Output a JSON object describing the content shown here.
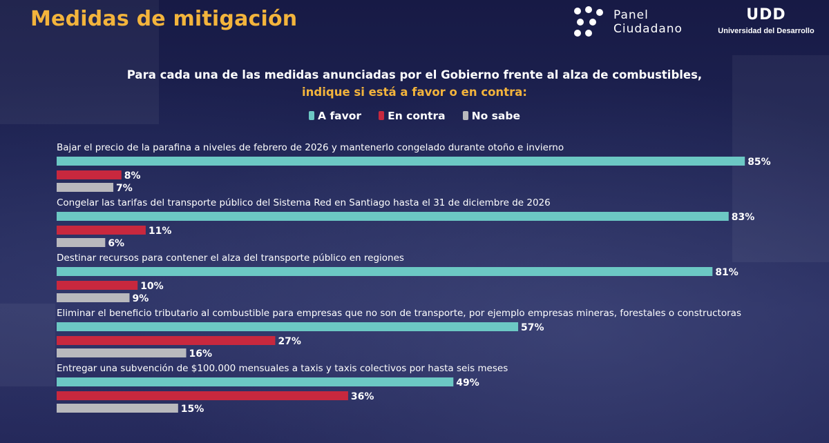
{
  "title": "Medidas de mitigación",
  "logos": {
    "panel_line1": "Panel",
    "panel_line2": "Ciudadano",
    "udd_mark": "UDD",
    "udd_name": "Universidad del Desarrollo"
  },
  "question": {
    "line1": "Para cada una de las medidas anunciadas por el Gobierno frente al alza de combustibles,",
    "line2": "indique si está a favor o en contra:"
  },
  "legend": [
    {
      "label": "A favor",
      "color": "#6cc8c4"
    },
    {
      "label": "En contra",
      "color": "#c8283e"
    },
    {
      "label": "No sabe",
      "color": "#b9b9bd"
    }
  ],
  "chart_data": {
    "type": "bar",
    "orientation": "horizontal",
    "categories": [
      "Bajar el precio de la parafina a niveles de febrero de 2026 y mantenerlo congelado durante otoño e invierno",
      "Congelar las tarifas del transporte público del Sistema Red en Santiago hasta el 31 de diciembre de 2026",
      "Destinar recursos para contener el alza del transporte público en regiones",
      "Eliminar el beneficio tributario al combustible para empresas que no son de transporte, por ejemplo empresas mineras, forestales o constructoras",
      "Entregar una subvención de $100.000 mensuales a taxis y taxis colectivos por hasta seis meses"
    ],
    "series": [
      {
        "name": "A favor",
        "color": "#6cc8c4",
        "values": [
          85,
          83,
          81,
          57,
          49
        ]
      },
      {
        "name": "En contra",
        "color": "#c8283e",
        "values": [
          8,
          11,
          10,
          27,
          36
        ]
      },
      {
        "name": "No sabe",
        "color": "#b9b9bd",
        "values": [
          7,
          6,
          9,
          16,
          15
        ]
      }
    ],
    "value_suffix": "%",
    "xlim": [
      0,
      85
    ]
  }
}
